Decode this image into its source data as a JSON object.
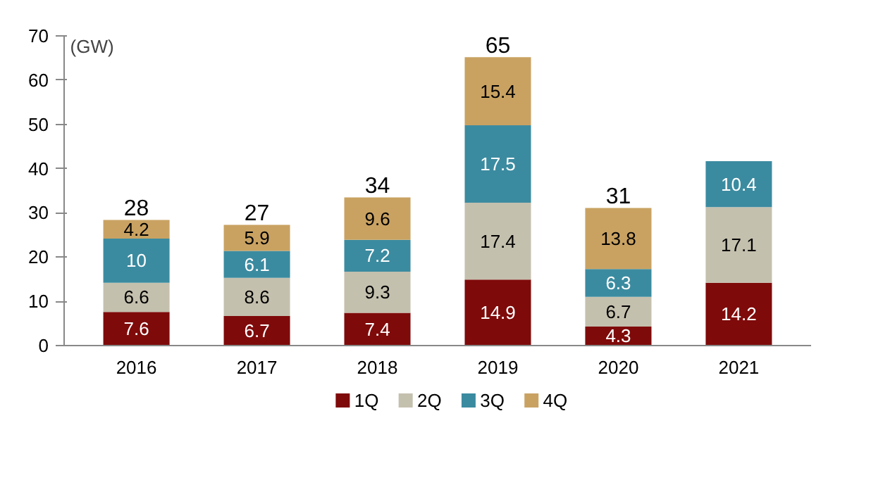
{
  "chart_data": {
    "type": "bar",
    "stacked": true,
    "ylabel": "(GW)",
    "categories": [
      "2016",
      "2017",
      "2018",
      "2019",
      "2020",
      "2021"
    ],
    "series": [
      {
        "name": "1Q",
        "color": "#7f0a0a",
        "values": [
          7.6,
          6.7,
          7.4,
          14.9,
          4.3,
          14.2
        ]
      },
      {
        "name": "2Q",
        "color": "#c4c0ae",
        "values": [
          6.6,
          8.6,
          9.3,
          17.4,
          6.7,
          17.1
        ]
      },
      {
        "name": "3Q",
        "color": "#3b8ba0",
        "values": [
          10,
          6.1,
          7.2,
          17.5,
          6.3,
          10.4
        ]
      },
      {
        "name": "4Q",
        "color": "#c9a262",
        "values": [
          4.2,
          5.9,
          9.6,
          15.4,
          13.8,
          null
        ]
      }
    ],
    "totals": [
      "28",
      "27",
      "34",
      "65",
      "31",
      null
    ],
    "data_labels": true,
    "ylim": [
      0,
      70
    ],
    "yticks": [
      0,
      10,
      20,
      30,
      40,
      50,
      60,
      70
    ],
    "grid": false,
    "legend": "bottom"
  }
}
